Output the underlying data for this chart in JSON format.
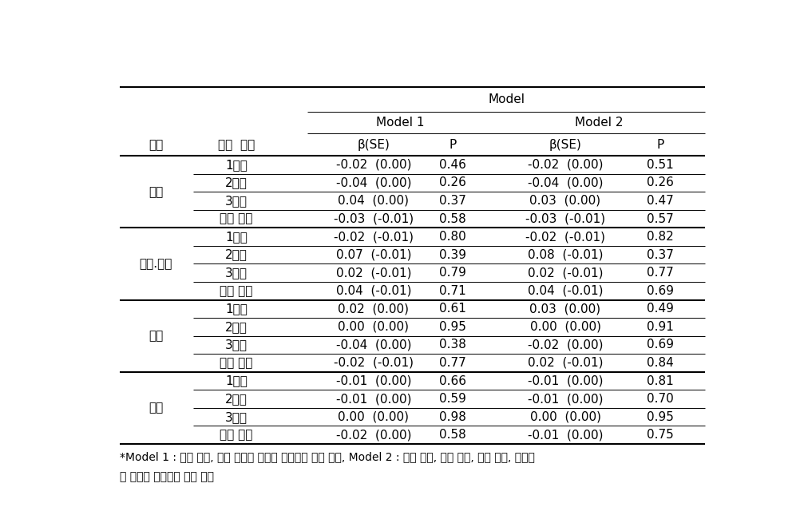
{
  "model_label": "Model",
  "model1_label": "Model 1",
  "model2_label": "Model 2",
  "header_col1": "도시",
  "header_col2": "임신  기간",
  "header_beta": "β(SE)",
  "header_p": "P",
  "rows": [
    [
      "서울",
      "1분기",
      "-0.02  (0.00)",
      "0.46",
      "-0.02  (0.00)",
      "0.51"
    ],
    [
      "서울",
      "2분기",
      "-0.04  (0.00)",
      "0.26",
      "-0.04  (0.00)",
      "0.26"
    ],
    [
      "서울",
      "3분기",
      "0.04  (0.00)",
      "0.37",
      "0.03  (0.00)",
      "0.47"
    ],
    [
      "서울",
      "전체 기간",
      "-0.03  (-0.01)",
      "0.58",
      "-0.03  (-0.01)",
      "0.57"
    ],
    [
      "천안.아산",
      "1분기",
      "-0.02  (-0.01)",
      "0.80",
      "-0.02  (-0.01)",
      "0.82"
    ],
    [
      "천안.아산",
      "2분기",
      "0.07  (-0.01)",
      "0.39",
      "0.08  (-0.01)",
      "0.37"
    ],
    [
      "천안.아산",
      "3분기",
      "0.02  (-0.01)",
      "0.79",
      "0.02  (-0.01)",
      "0.77"
    ],
    [
      "천안.아산",
      "전체 기간",
      "0.04  (-0.01)",
      "0.71",
      "0.04  (-0.01)",
      "0.69"
    ],
    [
      "울산",
      "1분기",
      "0.02  (0.00)",
      "0.61",
      "0.03  (0.00)",
      "0.49"
    ],
    [
      "울산",
      "2분기",
      "0.00  (0.00)",
      "0.95",
      "0.00  (0.00)",
      "0.91"
    ],
    [
      "울산",
      "3분기",
      "-0.04  (0.00)",
      "0.38",
      "-0.02  (0.00)",
      "0.69"
    ],
    [
      "울산",
      "전체 기간",
      "-0.02  (-0.01)",
      "0.77",
      "0.02  (-0.01)",
      "0.84"
    ],
    [
      "전체",
      "1분기",
      "-0.01  (0.00)",
      "0.66",
      "-0.01  (0.00)",
      "0.81"
    ],
    [
      "전체",
      "2분기",
      "-0.01  (0.00)",
      "0.59",
      "-0.01  (0.00)",
      "0.70"
    ],
    [
      "전체",
      "3분기",
      "0.00  (0.00)",
      "0.98",
      "0.00  (0.00)",
      "0.95"
    ],
    [
      "전체",
      "전체 기간",
      "-0.02  (0.00)",
      "0.58",
      "-0.01  (0.00)",
      "0.75"
    ]
  ],
  "city_labels": [
    "서울",
    "천안.아산",
    "울산",
    "전체"
  ],
  "city_row_ranges": [
    [
      0,
      3
    ],
    [
      4,
      7
    ],
    [
      8,
      11
    ],
    [
      12,
      15
    ]
  ],
  "city_group_ends": [
    3,
    7,
    11
  ],
  "footnote_line1": "*Model 1 : 임신 주수, 태아 성별을 보정한 다중선형 회귀 분석, Model 2 : 산모 나이, 임신 주수, 태아 성별, 출생수",
  "footnote_line2": "를 보정한 다중선형 회귀 분석",
  "bg_color": "#ffffff",
  "text_color": "#000000",
  "font_size": 11,
  "footnote_size": 10
}
